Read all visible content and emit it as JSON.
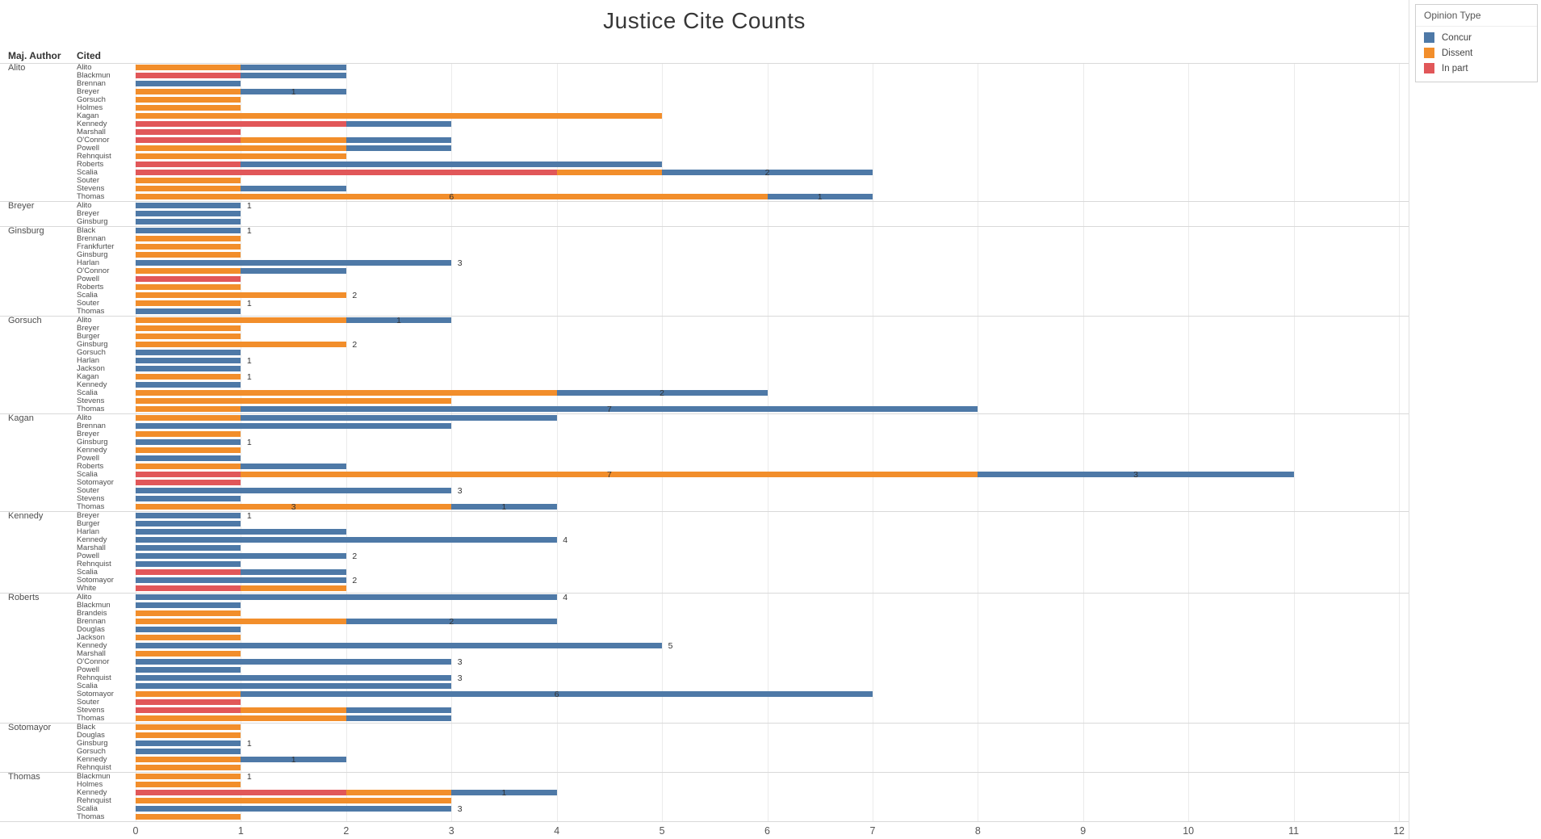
{
  "title": "Justice Cite Counts",
  "columns": {
    "maj_author": "Maj. Author",
    "cited": "Cited"
  },
  "legend": {
    "title": "Opinion Type",
    "items": [
      {
        "key": "concur",
        "label": "Concur",
        "color": "#4e79a7"
      },
      {
        "key": "dissent",
        "label": "Dissent",
        "color": "#f28e2b"
      },
      {
        "key": "inpart",
        "label": "In part",
        "color": "#e15759"
      }
    ]
  },
  "colors": {
    "concur": "#4e79a7",
    "dissent": "#f28e2b",
    "inpart": "#e15759"
  },
  "chart_data": {
    "type": "bar",
    "orientation": "horizontal",
    "stacked": true,
    "segment_order": [
      "inpart",
      "dissent",
      "concur"
    ],
    "xlim": [
      0,
      12
    ],
    "ticks": [
      0,
      1,
      2,
      3,
      4,
      5,
      6,
      7,
      8,
      9,
      10,
      11,
      12
    ],
    "grid": true,
    "groups": [
      {
        "author": "Alito",
        "rows": [
          {
            "cited": "Alito",
            "dissent": 1,
            "concur": 1
          },
          {
            "cited": "Blackmun",
            "inpart": 1,
            "concur": 1
          },
          {
            "cited": "Brennan",
            "concur": 1
          },
          {
            "cited": "Breyer",
            "dissent": 1,
            "concur": 1,
            "labels": [
              {
                "text": "1",
                "x": 1.5
              }
            ]
          },
          {
            "cited": "Gorsuch",
            "dissent": 1
          },
          {
            "cited": "Holmes",
            "dissent": 1
          },
          {
            "cited": "Kagan",
            "dissent": 5
          },
          {
            "cited": "Kennedy",
            "inpart": 2,
            "concur": 1
          },
          {
            "cited": "Marshall",
            "inpart": 1
          },
          {
            "cited": "O'Connor",
            "inpart": 1,
            "dissent": 1,
            "concur": 1
          },
          {
            "cited": "Powell",
            "dissent": 2,
            "concur": 1
          },
          {
            "cited": "Rehnquist",
            "dissent": 2
          },
          {
            "cited": "Roberts",
            "inpart": 1,
            "concur": 4
          },
          {
            "cited": "Scalia",
            "inpart": 4,
            "dissent": 1,
            "concur": 2,
            "labels": [
              {
                "text": "2",
                "x": 6
              }
            ]
          },
          {
            "cited": "Souter",
            "dissent": 1
          },
          {
            "cited": "Stevens",
            "dissent": 1,
            "concur": 1
          },
          {
            "cited": "Thomas",
            "dissent": 6,
            "concur": 1,
            "labels": [
              {
                "text": "6",
                "x": 3
              },
              {
                "text": "1",
                "x": 6.5
              }
            ]
          }
        ]
      },
      {
        "author": "Breyer",
        "rows": [
          {
            "cited": "Alito",
            "concur": 1,
            "labels": [
              {
                "text": "1",
                "x": 1.08
              }
            ]
          },
          {
            "cited": "Breyer",
            "concur": 1
          },
          {
            "cited": "Ginsburg",
            "concur": 1
          }
        ]
      },
      {
        "author": "Ginsburg",
        "rows": [
          {
            "cited": "Black",
            "concur": 1,
            "labels": [
              {
                "text": "1",
                "x": 1.08
              }
            ]
          },
          {
            "cited": "Brennan",
            "dissent": 1
          },
          {
            "cited": "Frankfurter",
            "dissent": 1
          },
          {
            "cited": "Ginsburg",
            "dissent": 1
          },
          {
            "cited": "Harlan",
            "concur": 3,
            "labels": [
              {
                "text": "3",
                "x": 3.08
              }
            ]
          },
          {
            "cited": "O'Connor",
            "dissent": 1,
            "concur": 1
          },
          {
            "cited": "Powell",
            "inpart": 1
          },
          {
            "cited": "Roberts",
            "dissent": 1
          },
          {
            "cited": "Scalia",
            "dissent": 2,
            "labels": [
              {
                "text": "2",
                "x": 2.08
              }
            ]
          },
          {
            "cited": "Souter",
            "dissent": 1,
            "labels": [
              {
                "text": "1",
                "x": 1.08
              }
            ]
          },
          {
            "cited": "Thomas",
            "concur": 1
          }
        ]
      },
      {
        "author": "Gorsuch",
        "rows": [
          {
            "cited": "Alito",
            "dissent": 2,
            "concur": 1,
            "labels": [
              {
                "text": "1",
                "x": 2.5
              }
            ]
          },
          {
            "cited": "Breyer",
            "dissent": 1
          },
          {
            "cited": "Burger",
            "dissent": 1
          },
          {
            "cited": "Ginsburg",
            "dissent": 2,
            "labels": [
              {
                "text": "2",
                "x": 2.08
              }
            ]
          },
          {
            "cited": "Gorsuch",
            "concur": 1
          },
          {
            "cited": "Harlan",
            "concur": 1,
            "labels": [
              {
                "text": "1",
                "x": 1.08
              }
            ]
          },
          {
            "cited": "Jackson",
            "concur": 1
          },
          {
            "cited": "Kagan",
            "dissent": 1,
            "labels": [
              {
                "text": "1",
                "x": 1.08
              }
            ]
          },
          {
            "cited": "Kennedy",
            "concur": 1
          },
          {
            "cited": "Scalia",
            "dissent": 4,
            "concur": 2,
            "labels": [
              {
                "text": "2",
                "x": 5
              }
            ]
          },
          {
            "cited": "Stevens",
            "dissent": 3
          },
          {
            "cited": "Thomas",
            "dissent": 1,
            "concur": 7,
            "labels": [
              {
                "text": "7",
                "x": 4.5
              }
            ]
          }
        ]
      },
      {
        "author": "Kagan",
        "rows": [
          {
            "cited": "Alito",
            "dissent": 1,
            "concur": 3
          },
          {
            "cited": "Brennan",
            "concur": 3
          },
          {
            "cited": "Breyer",
            "dissent": 1
          },
          {
            "cited": "Ginsburg",
            "concur": 1,
            "labels": [
              {
                "text": "1",
                "x": 1.08
              }
            ]
          },
          {
            "cited": "Kennedy",
            "dissent": 1
          },
          {
            "cited": "Powell",
            "concur": 1
          },
          {
            "cited": "Roberts",
            "dissent": 1,
            "concur": 1
          },
          {
            "cited": "Scalia",
            "inpart": 1,
            "dissent": 7,
            "concur": 3,
            "labels": [
              {
                "text": "7",
                "x": 4.5
              },
              {
                "text": "3",
                "x": 9.5
              }
            ]
          },
          {
            "cited": "Sotomayor",
            "inpart": 1
          },
          {
            "cited": "Souter",
            "concur": 3,
            "labels": [
              {
                "text": "3",
                "x": 3.08
              }
            ]
          },
          {
            "cited": "Stevens",
            "concur": 1
          },
          {
            "cited": "Thomas",
            "dissent": 3,
            "concur": 1,
            "labels": [
              {
                "text": "3",
                "x": 1.5
              },
              {
                "text": "1",
                "x": 3.5
              }
            ]
          }
        ]
      },
      {
        "author": "Kennedy",
        "rows": [
          {
            "cited": "Breyer",
            "concur": 1,
            "labels": [
              {
                "text": "1",
                "x": 1.08
              }
            ]
          },
          {
            "cited": "Burger",
            "concur": 1
          },
          {
            "cited": "Harlan",
            "concur": 2
          },
          {
            "cited": "Kennedy",
            "concur": 4,
            "labels": [
              {
                "text": "4",
                "x": 4.08
              }
            ]
          },
          {
            "cited": "Marshall",
            "concur": 1
          },
          {
            "cited": "Powell",
            "concur": 2,
            "labels": [
              {
                "text": "2",
                "x": 2.08
              }
            ]
          },
          {
            "cited": "Rehnquist",
            "concur": 1
          },
          {
            "cited": "Scalia",
            "inpart": 1,
            "concur": 1
          },
          {
            "cited": "Sotomayor",
            "concur": 2,
            "labels": [
              {
                "text": "2",
                "x": 2.08
              }
            ]
          },
          {
            "cited": "White",
            "inpart": 1,
            "dissent": 1
          }
        ]
      },
      {
        "author": "Roberts",
        "rows": [
          {
            "cited": "Alito",
            "concur": 4,
            "labels": [
              {
                "text": "4",
                "x": 4.08
              }
            ]
          },
          {
            "cited": "Blackmun",
            "concur": 1
          },
          {
            "cited": "Brandeis",
            "dissent": 1
          },
          {
            "cited": "Brennan",
            "dissent": 2,
            "concur": 2,
            "labels": [
              {
                "text": "2",
                "x": 3
              }
            ]
          },
          {
            "cited": "Douglas",
            "concur": 1
          },
          {
            "cited": "Jackson",
            "dissent": 1
          },
          {
            "cited": "Kennedy",
            "concur": 5,
            "labels": [
              {
                "text": "5",
                "x": 5.08
              }
            ]
          },
          {
            "cited": "Marshall",
            "dissent": 1
          },
          {
            "cited": "O'Connor",
            "concur": 3,
            "labels": [
              {
                "text": "3",
                "x": 3.08
              }
            ]
          },
          {
            "cited": "Powell",
            "concur": 1
          },
          {
            "cited": "Rehnquist",
            "concur": 3,
            "labels": [
              {
                "text": "3",
                "x": 3.08
              }
            ]
          },
          {
            "cited": "Scalia",
            "concur": 3
          },
          {
            "cited": "Sotomayor",
            "dissent": 1,
            "concur": 6,
            "labels": [
              {
                "text": "6",
                "x": 4
              }
            ]
          },
          {
            "cited": "Souter",
            "inpart": 1
          },
          {
            "cited": "Stevens",
            "inpart": 1,
            "dissent": 1,
            "concur": 1
          },
          {
            "cited": "Thomas",
            "dissent": 2,
            "concur": 1
          }
        ]
      },
      {
        "author": "Sotomayor",
        "rows": [
          {
            "cited": "Black",
            "dissent": 1
          },
          {
            "cited": "Douglas",
            "dissent": 1
          },
          {
            "cited": "Ginsburg",
            "concur": 1,
            "labels": [
              {
                "text": "1",
                "x": 1.08
              }
            ]
          },
          {
            "cited": "Gorsuch",
            "concur": 1
          },
          {
            "cited": "Kennedy",
            "dissent": 1,
            "concur": 1,
            "labels": [
              {
                "text": "1",
                "x": 1.5
              }
            ]
          },
          {
            "cited": "Rehnquist",
            "dissent": 1
          }
        ]
      },
      {
        "author": "Thomas",
        "rows": [
          {
            "cited": "Blackmun",
            "dissent": 1,
            "labels": [
              {
                "text": "1",
                "x": 1.08
              }
            ]
          },
          {
            "cited": "Holmes",
            "dissent": 1
          },
          {
            "cited": "Kennedy",
            "inpart": 2,
            "dissent": 1,
            "concur": 1,
            "labels": [
              {
                "text": "1",
                "x": 3.5
              }
            ]
          },
          {
            "cited": "Rehnquist",
            "dissent": 3
          },
          {
            "cited": "Scalia",
            "concur": 3,
            "labels": [
              {
                "text": "3",
                "x": 3.08
              }
            ]
          },
          {
            "cited": "Thomas",
            "dissent": 1
          }
        ]
      }
    ]
  }
}
